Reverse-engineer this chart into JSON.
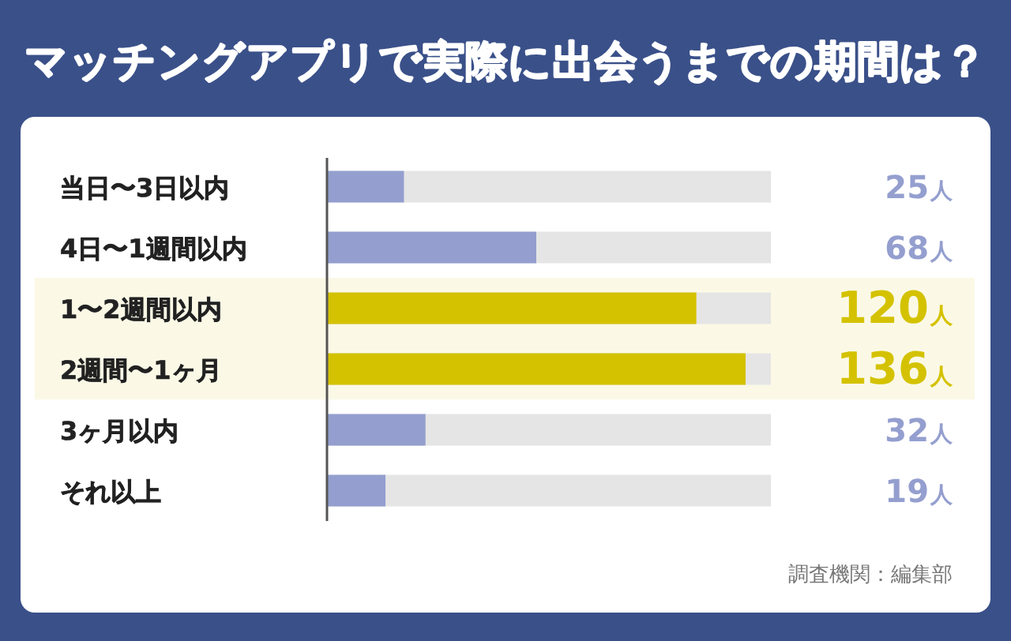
{
  "chart_data": {
    "type": "bar",
    "orientation": "horizontal",
    "title": "マッチングアプリで実際に出会うまでの期間は？",
    "categories": [
      "当日〜3日以内",
      "4日〜1週間以内",
      "1〜2週間以内",
      "2週間〜1ヶ月",
      "3ヶ月以内",
      "それ以上"
    ],
    "values": [
      25,
      68,
      120,
      136,
      32,
      19
    ],
    "colors": [
      "#949fcf",
      "#949fcf",
      "#d4c200",
      "#d4c200",
      "#949fcf",
      "#949fcf"
    ],
    "value_labels": [
      "25人",
      "68人",
      "120人",
      "136人",
      "32人",
      "19人"
    ],
    "annotations": [
      "調査機関：編集部"
    ]
  }
}
